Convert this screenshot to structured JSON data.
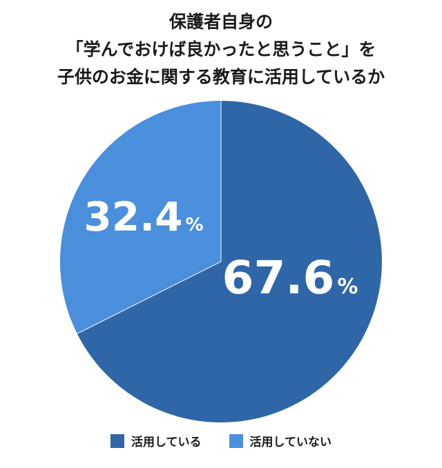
{
  "chart_data": {
    "type": "pie",
    "title_lines": [
      "保護者自身の",
      "「学んでおけば良かったと思うこと」を",
      "子供のお金に関する教育に活用しているか"
    ],
    "slices": [
      {
        "label": "活用している",
        "value": 67.6,
        "display": "67.6",
        "unit": "%",
        "color": "#2e66a8"
      },
      {
        "label": "活用していない",
        "value": 32.4,
        "display": "32.4",
        "unit": "%",
        "color": "#4a8fdc"
      }
    ],
    "start_angle_deg": 0,
    "direction": "clockwise",
    "legend_position": "bottom"
  }
}
